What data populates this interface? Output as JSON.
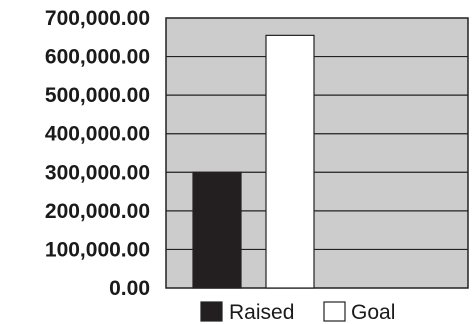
{
  "chart_data": {
    "type": "bar",
    "title": "",
    "xlabel": "",
    "ylabel": "",
    "ylim": [
      0,
      700000
    ],
    "y_ticks": [
      "0.00",
      "100,000.00",
      "200,000.00",
      "300,000.00",
      "400,000.00",
      "500,000.00",
      "600,000.00",
      "700,000.00"
    ],
    "grid": true,
    "legend_position": "bottom",
    "series": [
      {
        "name": "Raised",
        "values": [
          300000
        ],
        "color": "#231f20"
      },
      {
        "name": "Goal",
        "values": [
          655000
        ],
        "color": "#ffffff"
      }
    ],
    "plot_background": "#cccccc"
  }
}
